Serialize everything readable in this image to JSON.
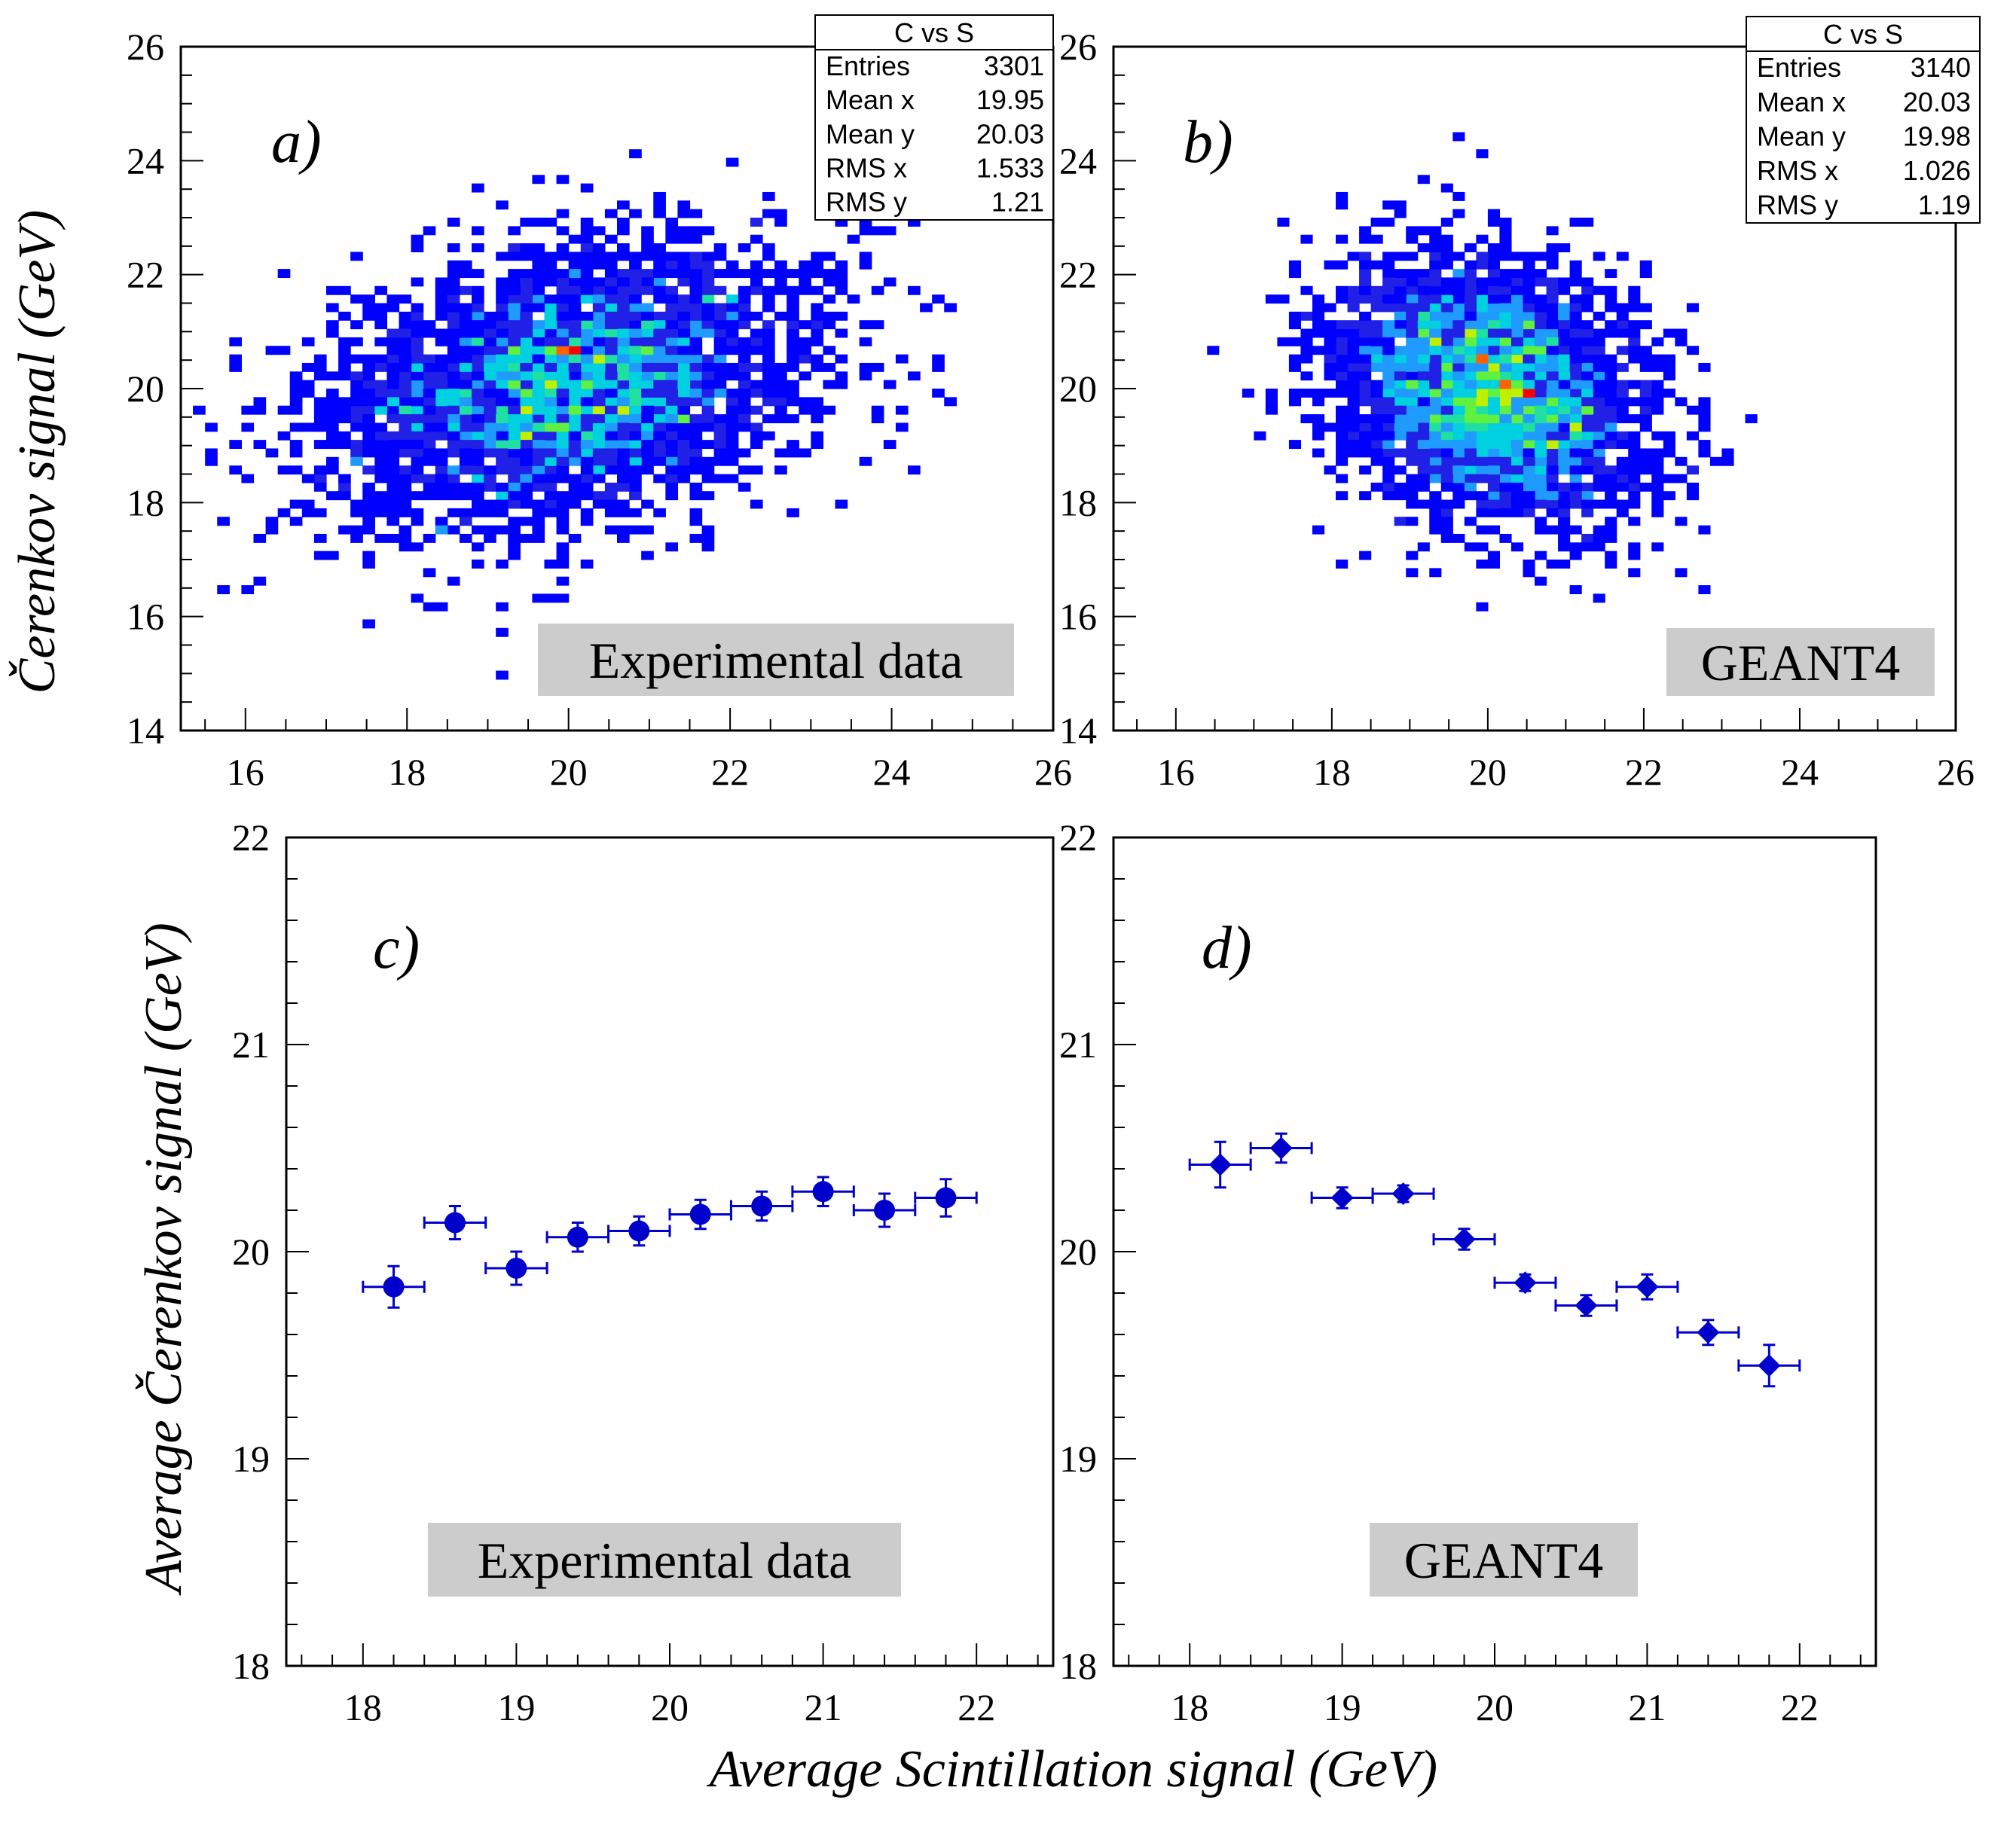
{
  "colors": {
    "frame": "#000000",
    "marker": "#0000cc",
    "label_box": "#cccccc",
    "palette": [
      "#0000ff",
      "#2020e6",
      "#1f9bff",
      "#00d0e0",
      "#1fe0a0",
      "#60f040",
      "#c0f000",
      "#ff6000",
      "#ff0000"
    ]
  },
  "figure": {
    "xlabel": "Average Scintillation signal (GeV)",
    "ylabel_bottom": "Average Čerenkov signal (GeV)"
  },
  "chart_data": [
    {
      "panel": "a)",
      "type": "heatmap",
      "tag_label": "Experimental data",
      "ylabel": "Čerenkov signal (GeV)",
      "xlim": [
        15.2,
        26
      ],
      "ylim": [
        14,
        26
      ],
      "xticks": [
        16,
        18,
        20,
        22,
        24,
        26
      ],
      "yticks": [
        14,
        16,
        18,
        20,
        22,
        24,
        26
      ],
      "bin_size": 0.15,
      "distribution": {
        "seed": 1701,
        "mean_x": 19.95,
        "mean_y": 20.03,
        "rms_x": 1.533,
        "rms_y": 1.21,
        "correlation": 0.3
      },
      "stats": {
        "title": "C vs S",
        "rows": [
          {
            "label": "Entries",
            "value": "3301"
          },
          {
            "label": "Mean x",
            "value": "19.95"
          },
          {
            "label": "Mean y",
            "value": "20.03"
          },
          {
            "label": "RMS x",
            "value": "1.533"
          },
          {
            "label": "RMS y",
            "value": "1.21"
          }
        ]
      }
    },
    {
      "panel": "b)",
      "type": "heatmap",
      "tag_label": "GEANT4",
      "xlim": [
        15.2,
        26
      ],
      "ylim": [
        14,
        26
      ],
      "xticks": [
        16,
        18,
        20,
        22,
        24,
        26
      ],
      "yticks": [
        14,
        16,
        18,
        20,
        22,
        24,
        26
      ],
      "bin_size": 0.15,
      "distribution": {
        "seed": 4242,
        "mean_x": 20.03,
        "mean_y": 19.98,
        "rms_x": 1.026,
        "rms_y": 1.19,
        "correlation": -0.25
      },
      "stats": {
        "title": "C vs S",
        "rows": [
          {
            "label": "Entries",
            "value": "3140"
          },
          {
            "label": "Mean x",
            "value": "20.03"
          },
          {
            "label": "Mean y",
            "value": "19.98"
          },
          {
            "label": "RMS x",
            "value": "1.026"
          },
          {
            "label": "RMS y",
            "value": "1.19"
          }
        ]
      }
    },
    {
      "panel": "c)",
      "type": "scatter",
      "marker": "circle",
      "tag_label": "Experimental data",
      "xlim": [
        17.5,
        22.5
      ],
      "ylim": [
        18,
        22
      ],
      "xticks": [
        18,
        19,
        20,
        21,
        22
      ],
      "yticks": [
        18,
        19,
        20,
        21,
        22
      ],
      "points": [
        {
          "x": 18.2,
          "y": 19.83,
          "xerr": 0.2,
          "yerr": 0.1
        },
        {
          "x": 18.6,
          "y": 20.14,
          "xerr": 0.2,
          "yerr": 0.08
        },
        {
          "x": 19.0,
          "y": 19.92,
          "xerr": 0.2,
          "yerr": 0.08
        },
        {
          "x": 19.4,
          "y": 20.07,
          "xerr": 0.2,
          "yerr": 0.07
        },
        {
          "x": 19.8,
          "y": 20.1,
          "xerr": 0.2,
          "yerr": 0.07
        },
        {
          "x": 20.2,
          "y": 20.18,
          "xerr": 0.2,
          "yerr": 0.07
        },
        {
          "x": 20.6,
          "y": 20.22,
          "xerr": 0.2,
          "yerr": 0.07
        },
        {
          "x": 21.0,
          "y": 20.29,
          "xerr": 0.2,
          "yerr": 0.07
        },
        {
          "x": 21.4,
          "y": 20.2,
          "xerr": 0.2,
          "yerr": 0.08
        },
        {
          "x": 21.8,
          "y": 20.26,
          "xerr": 0.2,
          "yerr": 0.09
        }
      ]
    },
    {
      "panel": "d)",
      "type": "scatter",
      "marker": "diamond",
      "tag_label": "GEANT4",
      "xlim": [
        17.5,
        22.5
      ],
      "ylim": [
        18,
        22
      ],
      "xticks": [
        18,
        19,
        20,
        21,
        22
      ],
      "yticks": [
        18,
        19,
        20,
        21,
        22
      ],
      "points": [
        {
          "x": 18.2,
          "y": 20.42,
          "xerr": 0.2,
          "yerr": 0.11
        },
        {
          "x": 18.6,
          "y": 20.5,
          "xerr": 0.2,
          "yerr": 0.07
        },
        {
          "x": 19.0,
          "y": 20.26,
          "xerr": 0.2,
          "yerr": 0.05
        },
        {
          "x": 19.4,
          "y": 20.28,
          "xerr": 0.2,
          "yerr": 0.04
        },
        {
          "x": 19.8,
          "y": 20.06,
          "xerr": 0.2,
          "yerr": 0.05
        },
        {
          "x": 20.2,
          "y": 19.85,
          "xerr": 0.2,
          "yerr": 0.04
        },
        {
          "x": 20.6,
          "y": 19.74,
          "xerr": 0.2,
          "yerr": 0.05
        },
        {
          "x": 21.0,
          "y": 19.83,
          "xerr": 0.2,
          "yerr": 0.06
        },
        {
          "x": 21.4,
          "y": 19.61,
          "xerr": 0.2,
          "yerr": 0.06
        },
        {
          "x": 21.8,
          "y": 19.45,
          "xerr": 0.2,
          "yerr": 0.1
        }
      ]
    }
  ]
}
